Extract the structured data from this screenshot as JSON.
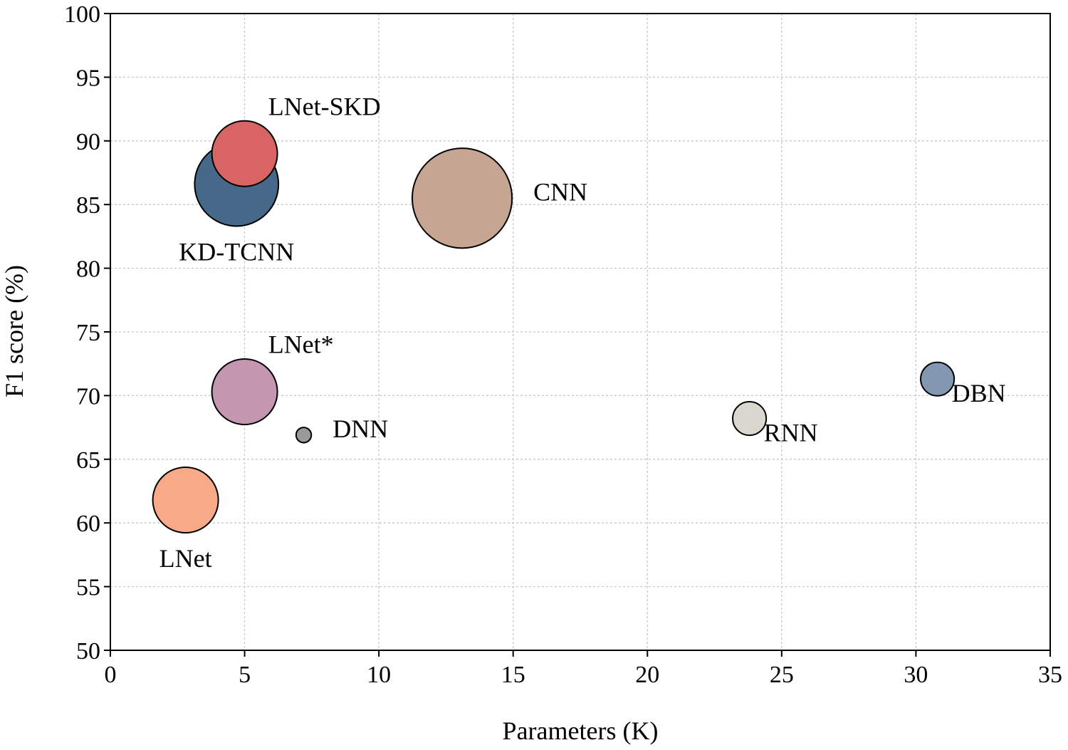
{
  "chart_data": {
    "type": "scatter",
    "variant": "bubble",
    "title": "",
    "xlabel": "Parameters (K)",
    "ylabel": "F1 score (%)",
    "xlim": [
      0,
      35
    ],
    "ylim": [
      50,
      100
    ],
    "xticks": [
      0,
      5,
      10,
      15,
      20,
      25,
      30,
      35
    ],
    "yticks": [
      50,
      55,
      60,
      65,
      70,
      75,
      80,
      85,
      90,
      95,
      100
    ],
    "grid": true,
    "points": [
      {
        "name": "CNN",
        "x": 13.1,
        "y": 85.5,
        "size_k": 13.1,
        "color": "#c6a592"
      },
      {
        "name": "KD-TCNN",
        "x": 4.7,
        "y": 86.6,
        "size_k": 11.0,
        "color": "#46698a"
      },
      {
        "name": "LNet-SKD",
        "x": 5.0,
        "y": 89.0,
        "size_k": 8.6,
        "color": "#d96464"
      },
      {
        "name": "LNet*",
        "x": 5.0,
        "y": 70.3,
        "size_k": 8.6,
        "color": "#c596b0"
      },
      {
        "name": "LNet",
        "x": 2.8,
        "y": 61.8,
        "size_k": 8.6,
        "color": "#f8aa88"
      },
      {
        "name": "DNN",
        "x": 7.2,
        "y": 66.9,
        "size_k": 2.0,
        "color": "#999999"
      },
      {
        "name": "RNN",
        "x": 23.8,
        "y": 68.2,
        "size_k": 4.4,
        "color": "#d9d7ce"
      },
      {
        "name": "DBN",
        "x": 30.8,
        "y": 71.3,
        "size_k": 4.4,
        "color": "#8497b0"
      }
    ],
    "label_positions": {
      "CNN": "right",
      "KD-TCNN": "below",
      "LNet-SKD": "above-right",
      "LNet*": "above-right",
      "LNet": "below",
      "DNN": "right",
      "RNN": "below-right",
      "DBN": "below-right"
    }
  }
}
